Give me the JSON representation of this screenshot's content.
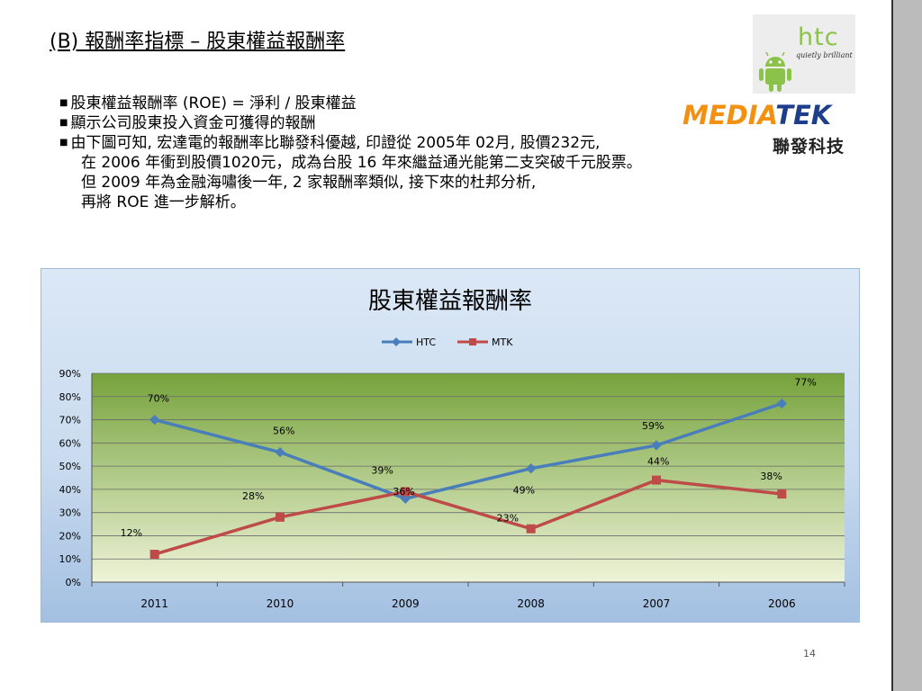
{
  "slide": {
    "title": "(B) 報酬率指標 – 股東權益報酬率",
    "bullets": [
      "股東權益報酬率 (ROE) = 淨利 / 股東權益",
      "顯示公司股東投入資金可獲得的報酬",
      "由下圖可知, 宏達電的報酬率比聯發科優越, 印證從 2005年 02月, 股價232元,"
    ],
    "continuation": [
      "在 2006 年衝到股價1020元，成為台股 16 年來繼益通光能第二支突破千元股票。",
      "但 2009 年為金融海嘯後一年, 2 家報酬率類似, 接下來的杜邦分析,",
      "再將 ROE 進一步解析。"
    ],
    "page_number": "14"
  },
  "logos": {
    "htc_word": "htc",
    "htc_tagline": "quietly brilliant",
    "mediatek_part1": "MEDIA",
    "mediatek_part2": "TEK",
    "mediatek_cn": "聯發科技"
  },
  "colors": {
    "htc_series": "#4a7ebb",
    "mtk_series": "#be4b48",
    "plot_top": "#76a33c",
    "plot_bottom": "#eef3d8",
    "mediatek_orange": "#f29111",
    "mediatek_blue": "#1d3e8a"
  },
  "chart_data": {
    "type": "line",
    "title": "股東權益報酬率",
    "categories": [
      "2011",
      "2010",
      "2009",
      "2008",
      "2007",
      "2006"
    ],
    "series": [
      {
        "name": "HTC",
        "values": [
          70,
          56,
          36,
          49,
          59,
          77
        ],
        "labels": [
          "70%",
          "56%",
          "36%",
          "49%",
          "59%",
          "77%"
        ]
      },
      {
        "name": "MTK",
        "values": [
          12,
          28,
          39,
          23,
          44,
          38
        ],
        "labels": [
          "12%",
          "28%",
          "39%",
          "23%",
          "44%",
          "38%"
        ]
      }
    ],
    "y_ticks": [
      "0%",
      "10%",
      "20%",
      "30%",
      "40%",
      "50%",
      "60%",
      "70%",
      "80%",
      "90%"
    ],
    "ylim": [
      0,
      90
    ],
    "grid": true,
    "legend_position": "top"
  }
}
